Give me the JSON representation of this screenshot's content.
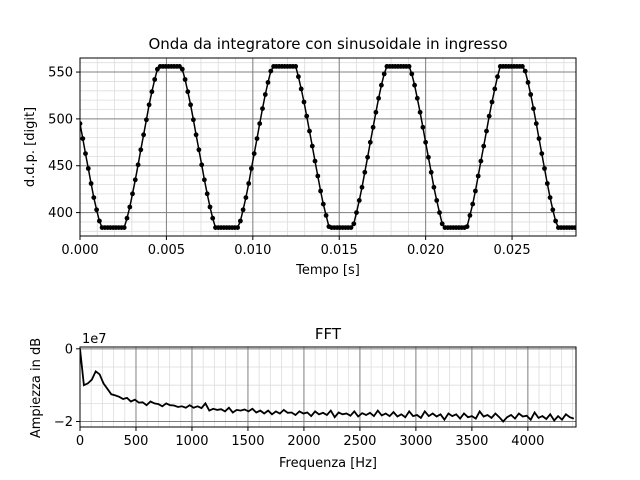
{
  "chart_data": [
    {
      "type": "line",
      "title": "Onda da integratore con sinusoidale in ingresso",
      "xlabel": "Tempo [s]",
      "ylabel": "d.d.p. [digit]",
      "xlim": [
        0,
        0.0287
      ],
      "ylim": [
        375,
        565
      ],
      "x_ticks": [
        0,
        0.005,
        0.01,
        0.015,
        0.02,
        0.025
      ],
      "x_tick_labels": [
        "0.000",
        "0.005",
        "0.010",
        "0.015",
        "0.020",
        "0.025"
      ],
      "y_ticks": [
        400,
        450,
        500,
        550
      ],
      "y_tick_labels": [
        "400",
        "450",
        "500",
        "550"
      ],
      "grid": true,
      "markers": true,
      "sampling": {
        "dt": 0.00016,
        "count": 180
      },
      "waveform": {
        "min": 384,
        "max": 556,
        "period": 0.0066,
        "phase_peak": 0.0052
      },
      "series": [
        {
          "values_note": "",
          "color": "#000000"
        }
      ]
    },
    {
      "type": "line",
      "title": "FFT",
      "xlabel": "Frequenza [Hz]",
      "ylabel": "Ampiezza in dB",
      "y_offset_label": "1e7",
      "xlim": [
        0,
        4430
      ],
      "ylim": [
        -2.15,
        0.05
      ],
      "x_ticks": [
        0,
        500,
        1000,
        1500,
        2000,
        2500,
        3000,
        3500,
        4000
      ],
      "x_tick_labels": [
        "0",
        "500",
        "1000",
        "1500",
        "2000",
        "2500",
        "3000",
        "3500",
        "4000"
      ],
      "y_ticks": [
        -2,
        0
      ],
      "y_tick_labels": [
        "−2",
        "0"
      ],
      "grid": true,
      "series": [
        {
          "color": "#000000",
          "x_step": 35,
          "values": [
            0,
            -1.0,
            -0.95,
            -0.85,
            -0.62,
            -0.7,
            -0.95,
            -1.1,
            -1.25,
            -1.28,
            -1.32,
            -1.38,
            -1.35,
            -1.45,
            -1.4,
            -1.48,
            -1.47,
            -1.55,
            -1.45,
            -1.5,
            -1.52,
            -1.58,
            -1.5,
            -1.55,
            -1.56,
            -1.6,
            -1.58,
            -1.62,
            -1.55,
            -1.62,
            -1.58,
            -1.63,
            -1.5,
            -1.7,
            -1.65,
            -1.68,
            -1.66,
            -1.72,
            -1.62,
            -1.75,
            -1.68,
            -1.7,
            -1.67,
            -1.72,
            -1.65,
            -1.75,
            -1.7,
            -1.78,
            -1.7,
            -1.8,
            -1.72,
            -1.78,
            -1.68,
            -1.76,
            -1.75,
            -1.82,
            -1.72,
            -1.78,
            -1.75,
            -1.85,
            -1.72,
            -1.8,
            -1.76,
            -1.82,
            -1.7,
            -1.88,
            -1.75,
            -1.8,
            -1.78,
            -1.84,
            -1.72,
            -1.86,
            -1.77,
            -1.82,
            -1.76,
            -1.85,
            -1.7,
            -1.83,
            -1.78,
            -1.85,
            -1.74,
            -1.86,
            -1.8,
            -1.88,
            -1.72,
            -1.85,
            -1.82,
            -1.9,
            -1.72,
            -1.85,
            -1.78,
            -1.86,
            -1.8,
            -1.95,
            -1.78,
            -1.85,
            -1.8,
            -1.92,
            -1.78,
            -1.88,
            -1.85,
            -1.92,
            -1.72,
            -1.86,
            -1.82,
            -1.9,
            -1.78,
            -1.88,
            -2.0,
            -1.88,
            -1.82,
            -1.92,
            -1.78,
            -1.86,
            -1.84,
            -1.95,
            -1.75,
            -1.9,
            -1.85,
            -1.93,
            -1.8,
            -1.97,
            -1.85,
            -1.95,
            -1.8,
            -1.88,
            -1.92
          ]
        }
      ]
    }
  ]
}
